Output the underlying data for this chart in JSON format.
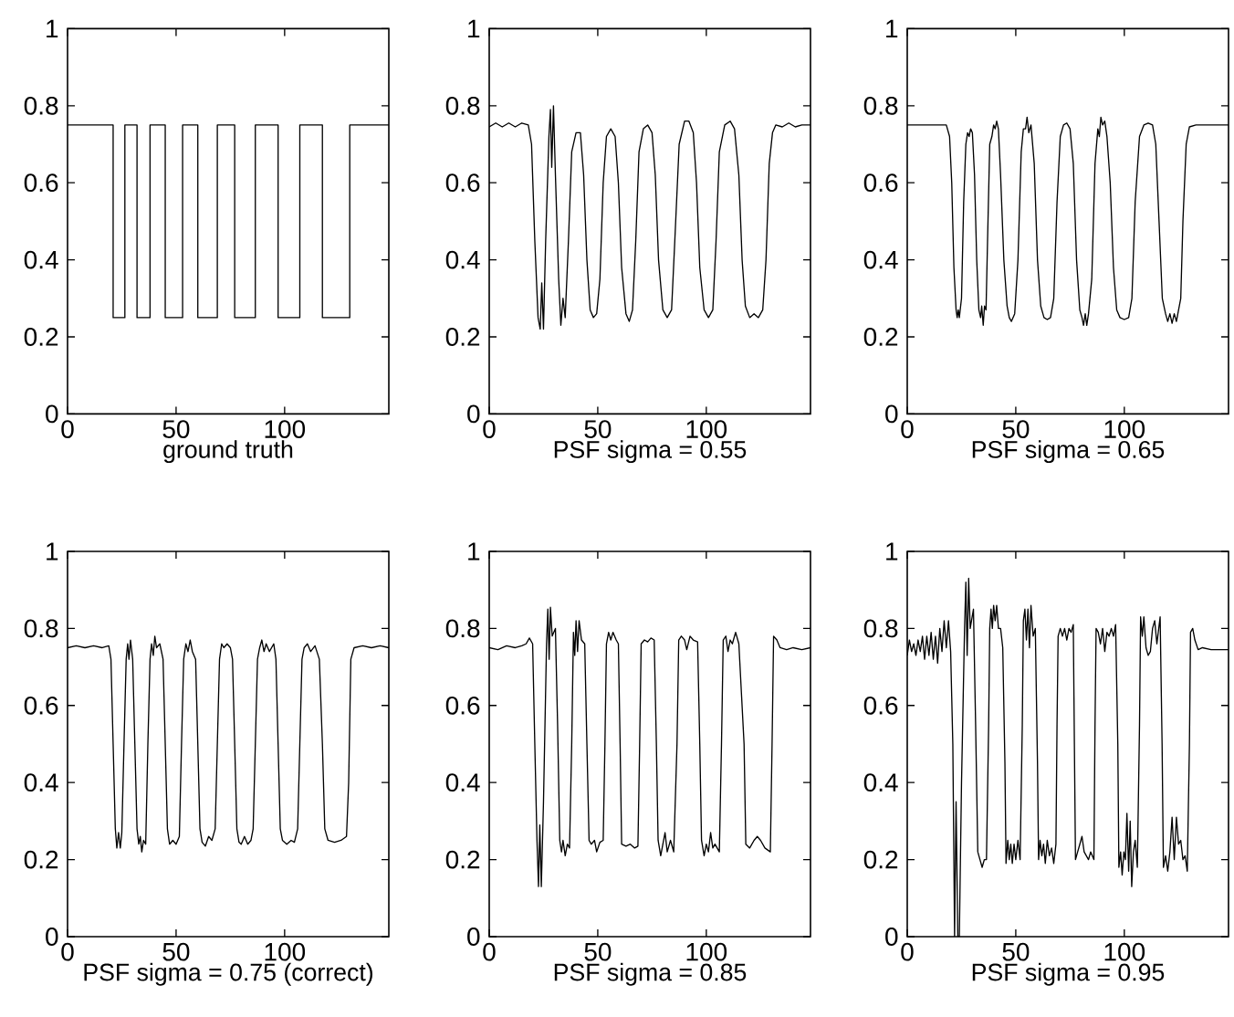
{
  "chart_data": [
    {
      "type": "line",
      "xlabel": "ground truth",
      "color": "#000000",
      "xlim": [
        0,
        148
      ],
      "ylim": [
        0,
        1
      ],
      "xticks": [
        0,
        50,
        100
      ],
      "yticks": [
        0,
        0.2,
        0.4,
        0.6,
        0.8,
        1
      ],
      "x": [
        0,
        21,
        21,
        26.4,
        26.4,
        32,
        32,
        38,
        38,
        45,
        45,
        53,
        53,
        60,
        60,
        69,
        69,
        77,
        77,
        86.5,
        86.5,
        97,
        97,
        107,
        107,
        117.4,
        117.4,
        130,
        130,
        148
      ],
      "values": [
        0.75,
        0.75,
        0.25,
        0.25,
        0.75,
        0.75,
        0.25,
        0.25,
        0.75,
        0.75,
        0.25,
        0.25,
        0.75,
        0.75,
        0.25,
        0.25,
        0.75,
        0.75,
        0.25,
        0.25,
        0.75,
        0.75,
        0.25,
        0.25,
        0.75,
        0.75,
        0.25,
        0.25,
        0.75,
        0.75
      ]
    },
    {
      "type": "line",
      "xlabel": "PSF sigma = 0.55",
      "color": "#000000",
      "xlim": [
        0,
        148
      ],
      "ylim": [
        0,
        1
      ],
      "xticks": [
        0,
        50,
        100
      ],
      "yticks": [
        0,
        0.2,
        0.4,
        0.6,
        0.8,
        1
      ],
      "x": [
        0,
        3,
        6,
        9,
        12,
        15,
        18,
        19.5,
        21,
        22.5,
        23.5,
        24.2,
        25,
        26,
        27.5,
        28.2,
        28.8,
        29.6,
        30.5,
        32,
        33,
        34,
        35,
        36.5,
        38,
        40,
        42,
        43.5,
        45,
        46.5,
        48,
        49.5,
        51,
        52.5,
        54,
        56,
        58,
        59.5,
        61,
        63,
        64.5,
        66,
        67.5,
        69,
        71,
        73,
        75,
        76.5,
        78,
        80,
        82,
        84,
        85.5,
        87.5,
        90,
        92,
        94,
        95.5,
        97,
        99,
        101,
        103,
        104.5,
        106,
        108.5,
        111,
        113,
        115,
        116.5,
        118,
        120,
        122,
        124,
        126,
        127.5,
        129,
        130.5,
        132,
        135,
        138,
        141,
        144,
        148
      ],
      "values": [
        0.745,
        0.755,
        0.745,
        0.755,
        0.745,
        0.755,
        0.75,
        0.7,
        0.45,
        0.25,
        0.22,
        0.34,
        0.22,
        0.45,
        0.72,
        0.79,
        0.64,
        0.8,
        0.62,
        0.35,
        0.23,
        0.3,
        0.25,
        0.45,
        0.68,
        0.73,
        0.73,
        0.62,
        0.4,
        0.27,
        0.25,
        0.26,
        0.35,
        0.6,
        0.72,
        0.74,
        0.72,
        0.6,
        0.38,
        0.26,
        0.24,
        0.27,
        0.45,
        0.68,
        0.74,
        0.75,
        0.73,
        0.62,
        0.4,
        0.27,
        0.25,
        0.27,
        0.45,
        0.7,
        0.76,
        0.76,
        0.73,
        0.6,
        0.38,
        0.27,
        0.25,
        0.27,
        0.45,
        0.68,
        0.75,
        0.76,
        0.74,
        0.62,
        0.4,
        0.28,
        0.25,
        0.26,
        0.25,
        0.27,
        0.4,
        0.65,
        0.73,
        0.75,
        0.745,
        0.755,
        0.745,
        0.75,
        0.75
      ]
    },
    {
      "type": "line",
      "xlabel": "PSF sigma = 0.65",
      "color": "#000000",
      "xlim": [
        0,
        148
      ],
      "ylim": [
        0,
        1
      ],
      "xticks": [
        0,
        50,
        100
      ],
      "yticks": [
        0,
        0.2,
        0.4,
        0.6,
        0.8,
        1
      ],
      "x": [
        0,
        5,
        10,
        15,
        18,
        19.5,
        20.5,
        21.5,
        22.5,
        23,
        23.5,
        24,
        25,
        26,
        27,
        27.8,
        28.5,
        29.2,
        30,
        31,
        32,
        33,
        33.8,
        34.3,
        35,
        35.6,
        36.3,
        37,
        38,
        39,
        39.8,
        40.5,
        41.2,
        42,
        43,
        44.5,
        46,
        47,
        48,
        49.5,
        51,
        52.5,
        53.5,
        54.5,
        55.2,
        56,
        57,
        58.5,
        60,
        61.5,
        63,
        64.5,
        66,
        67.5,
        69,
        70.5,
        72,
        73.5,
        75,
        76.5,
        78,
        79.5,
        80.5,
        81.2,
        82,
        82.7,
        83.5,
        85,
        86.5,
        87.8,
        88.5,
        89.2,
        90,
        91,
        92,
        93.5,
        95,
        96.5,
        98,
        100,
        102,
        103.5,
        105,
        107,
        109,
        111,
        113,
        114.5,
        116,
        117.5,
        119,
        120,
        121,
        122,
        123,
        124,
        125,
        126,
        127,
        128.5,
        130,
        133,
        148
      ],
      "values": [
        0.75,
        0.75,
        0.75,
        0.75,
        0.75,
        0.72,
        0.6,
        0.38,
        0.27,
        0.25,
        0.27,
        0.25,
        0.3,
        0.55,
        0.7,
        0.73,
        0.72,
        0.74,
        0.73,
        0.62,
        0.4,
        0.27,
        0.25,
        0.28,
        0.23,
        0.28,
        0.27,
        0.45,
        0.7,
        0.72,
        0.75,
        0.74,
        0.76,
        0.74,
        0.62,
        0.4,
        0.28,
        0.25,
        0.24,
        0.26,
        0.4,
        0.68,
        0.74,
        0.74,
        0.77,
        0.73,
        0.75,
        0.65,
        0.4,
        0.28,
        0.25,
        0.245,
        0.25,
        0.3,
        0.55,
        0.72,
        0.75,
        0.755,
        0.74,
        0.65,
        0.4,
        0.27,
        0.25,
        0.23,
        0.26,
        0.23,
        0.26,
        0.35,
        0.65,
        0.74,
        0.72,
        0.77,
        0.75,
        0.76,
        0.72,
        0.6,
        0.38,
        0.27,
        0.25,
        0.245,
        0.25,
        0.3,
        0.55,
        0.72,
        0.75,
        0.755,
        0.75,
        0.7,
        0.5,
        0.3,
        0.26,
        0.24,
        0.26,
        0.235,
        0.26,
        0.24,
        0.27,
        0.3,
        0.5,
        0.7,
        0.745,
        0.75,
        0.75
      ]
    },
    {
      "type": "line",
      "xlabel": "PSF sigma = 0.75 (correct)",
      "color": "#000000",
      "xlim": [
        0,
        148
      ],
      "ylim": [
        0,
        1
      ],
      "xticks": [
        0,
        50,
        100
      ],
      "yticks": [
        0,
        0.2,
        0.4,
        0.6,
        0.8,
        1
      ],
      "x": [
        0,
        4,
        8,
        12,
        16,
        19,
        20,
        21,
        22,
        22.7,
        23.5,
        24.3,
        25,
        26,
        27,
        27.7,
        28.3,
        29,
        30,
        31,
        32,
        32.8,
        33.5,
        34.2,
        35,
        36,
        37,
        38,
        38.7,
        39.5,
        40.2,
        41,
        42.5,
        44,
        45,
        46,
        47,
        48.5,
        50,
        51.5,
        52.5,
        53.5,
        54.5,
        55.5,
        56.5,
        57.5,
        59,
        60,
        61,
        62,
        63.5,
        65,
        66.5,
        68,
        69,
        70,
        71,
        72,
        73.5,
        75,
        76,
        77,
        78,
        79,
        80,
        81.5,
        83,
        84.5,
        85.5,
        86.5,
        87.5,
        88.5,
        89.5,
        90.5,
        91.5,
        93,
        95,
        96,
        97,
        98,
        99,
        101,
        103,
        104.5,
        106,
        107,
        108,
        109,
        110.5,
        112,
        114,
        116,
        117.4,
        118.5,
        120,
        123,
        126,
        128.5,
        129.5,
        130.5,
        132,
        136,
        140,
        144,
        148
      ],
      "values": [
        0.75,
        0.755,
        0.75,
        0.755,
        0.75,
        0.755,
        0.72,
        0.5,
        0.28,
        0.23,
        0.27,
        0.23,
        0.27,
        0.5,
        0.72,
        0.76,
        0.72,
        0.77,
        0.72,
        0.5,
        0.28,
        0.24,
        0.26,
        0.22,
        0.25,
        0.24,
        0.5,
        0.72,
        0.76,
        0.73,
        0.78,
        0.75,
        0.76,
        0.72,
        0.5,
        0.28,
        0.24,
        0.25,
        0.24,
        0.26,
        0.5,
        0.72,
        0.76,
        0.74,
        0.77,
        0.74,
        0.72,
        0.5,
        0.28,
        0.245,
        0.235,
        0.26,
        0.25,
        0.28,
        0.5,
        0.72,
        0.76,
        0.75,
        0.76,
        0.75,
        0.72,
        0.5,
        0.28,
        0.245,
        0.24,
        0.26,
        0.24,
        0.25,
        0.28,
        0.5,
        0.72,
        0.75,
        0.77,
        0.74,
        0.76,
        0.74,
        0.76,
        0.72,
        0.5,
        0.28,
        0.25,
        0.24,
        0.25,
        0.245,
        0.28,
        0.5,
        0.72,
        0.75,
        0.76,
        0.74,
        0.755,
        0.72,
        0.5,
        0.28,
        0.25,
        0.245,
        0.25,
        0.26,
        0.4,
        0.72,
        0.75,
        0.755,
        0.75,
        0.755,
        0.75
      ]
    },
    {
      "type": "line",
      "xlabel": "PSF sigma = 0.85",
      "color": "#000000",
      "xlim": [
        0,
        148
      ],
      "ylim": [
        0,
        1
      ],
      "xticks": [
        0,
        50,
        100
      ],
      "yticks": [
        0,
        0.2,
        0.4,
        0.6,
        0.8,
        1
      ],
      "x": [
        0,
        4,
        8,
        12,
        15,
        17,
        18.5,
        20,
        21,
        22,
        22.7,
        23.3,
        24,
        25,
        26.4,
        27,
        27.6,
        28.2,
        29,
        30.5,
        31.5,
        32.5,
        33.3,
        34,
        35,
        36,
        37,
        38,
        38.8,
        39.4,
        40,
        40.7,
        41.4,
        42.5,
        44,
        45,
        46,
        47,
        48.5,
        49.5,
        51,
        52.5,
        53.3,
        54,
        55,
        56,
        57,
        58.5,
        59.5,
        60.3,
        61,
        63,
        65,
        67,
        68.5,
        69.3,
        70,
        71.5,
        73,
        74.5,
        76,
        77,
        77.8,
        79,
        80,
        81,
        82,
        83.5,
        85,
        86.5,
        87.3,
        88.5,
        90,
        91,
        92.5,
        94,
        96,
        97,
        97.8,
        99,
        100,
        101,
        102,
        103,
        104,
        106,
        107,
        107.8,
        109,
        110,
        111,
        112,
        113.5,
        115,
        117.4,
        118.2,
        120,
        122,
        123.5,
        125,
        127,
        129.5,
        130.3,
        131,
        132.5,
        134,
        137,
        140,
        144,
        148
      ],
      "values": [
        0.75,
        0.745,
        0.755,
        0.75,
        0.755,
        0.76,
        0.775,
        0.76,
        0.5,
        0.25,
        0.13,
        0.29,
        0.13,
        0.35,
        0.76,
        0.85,
        0.72,
        0.855,
        0.78,
        0.8,
        0.55,
        0.25,
        0.22,
        0.25,
        0.21,
        0.24,
        0.23,
        0.5,
        0.79,
        0.73,
        0.82,
        0.74,
        0.82,
        0.77,
        0.76,
        0.5,
        0.25,
        0.24,
        0.25,
        0.22,
        0.245,
        0.25,
        0.5,
        0.76,
        0.79,
        0.77,
        0.79,
        0.77,
        0.76,
        0.5,
        0.24,
        0.235,
        0.24,
        0.23,
        0.235,
        0.5,
        0.76,
        0.77,
        0.765,
        0.775,
        0.77,
        0.5,
        0.25,
        0.21,
        0.24,
        0.27,
        0.22,
        0.25,
        0.22,
        0.5,
        0.77,
        0.78,
        0.77,
        0.745,
        0.78,
        0.77,
        0.765,
        0.5,
        0.25,
        0.21,
        0.24,
        0.22,
        0.27,
        0.23,
        0.24,
        0.22,
        0.5,
        0.77,
        0.78,
        0.74,
        0.77,
        0.76,
        0.79,
        0.76,
        0.5,
        0.24,
        0.23,
        0.25,
        0.26,
        0.25,
        0.23,
        0.22,
        0.5,
        0.78,
        0.77,
        0.75,
        0.745,
        0.75,
        0.745,
        0.75
      ]
    },
    {
      "type": "line",
      "xlabel": "PSF sigma = 0.95",
      "color": "#000000",
      "xlim": [
        0,
        148
      ],
      "ylim": [
        0,
        1
      ],
      "xticks": [
        0,
        50,
        100
      ],
      "yticks": [
        0,
        0.2,
        0.4,
        0.6,
        0.8,
        1
      ],
      "x": [
        0,
        1,
        2,
        3,
        4,
        5,
        6,
        7,
        8,
        9,
        10,
        11,
        12,
        13,
        14,
        15,
        16,
        17,
        18,
        19,
        20,
        21,
        21.8,
        22.5,
        23.3,
        24,
        25,
        26.4,
        27,
        27.6,
        28.3,
        29,
        30.5,
        31.5,
        32.5,
        33.5,
        34.5,
        35.5,
        36.5,
        37.5,
        38,
        38.6,
        39.2,
        39.8,
        40.5,
        41.2,
        42,
        43,
        44,
        45,
        45.5,
        46.3,
        47,
        47.7,
        48.4,
        49.2,
        50,
        51,
        52,
        53,
        53.5,
        54.2,
        54.9,
        55.6,
        56.3,
        57,
        58,
        59,
        60,
        60.5,
        61.2,
        62,
        62.8,
        63.6,
        64.5,
        65.5,
        66.5,
        67.5,
        68.5,
        69,
        69.5,
        70.5,
        71.5,
        72.5,
        73.5,
        74.5,
        75.5,
        76.5,
        77,
        77.5,
        78.5,
        79.5,
        80.5,
        81.5,
        82.5,
        83.5,
        84.5,
        86,
        86.5,
        87,
        88,
        89,
        90,
        91,
        92,
        93,
        94,
        95,
        96,
        97,
        97.5,
        98.3,
        99,
        99.8,
        100.5,
        101.2,
        102,
        102.7,
        103.4,
        104.2,
        105,
        106,
        107,
        107.5,
        108.3,
        109,
        110,
        111,
        112,
        113,
        114,
        115,
        116.5,
        117.4,
        118,
        119,
        120,
        121,
        122,
        123,
        124,
        125,
        126,
        127,
        128,
        129,
        130,
        130.5,
        131.5,
        132.5,
        134,
        136,
        140,
        148
      ],
      "values": [
        0.73,
        0.77,
        0.74,
        0.76,
        0.73,
        0.77,
        0.74,
        0.78,
        0.72,
        0.78,
        0.73,
        0.79,
        0.72,
        0.78,
        0.71,
        0.8,
        0.74,
        0.82,
        0.75,
        0.82,
        0.74,
        0.5,
        0,
        0.35,
        0,
        0,
        0.4,
        0.8,
        0.92,
        0.73,
        0.93,
        0.8,
        0.85,
        0.55,
        0.22,
        0.2,
        0.18,
        0.2,
        0.2,
        0.55,
        0.8,
        0.85,
        0.8,
        0.86,
        0.82,
        0.86,
        0.8,
        0.8,
        0.75,
        0.45,
        0.19,
        0.25,
        0.2,
        0.24,
        0.19,
        0.24,
        0.2,
        0.25,
        0.2,
        0.55,
        0.82,
        0.85,
        0.77,
        0.85,
        0.75,
        0.86,
        0.78,
        0.8,
        0.45,
        0.2,
        0.25,
        0.21,
        0.24,
        0.19,
        0.25,
        0.21,
        0.23,
        0.19,
        0.24,
        0.55,
        0.78,
        0.8,
        0.78,
        0.8,
        0.77,
        0.8,
        0.79,
        0.81,
        0.5,
        0.2,
        0.22,
        0.24,
        0.26,
        0.22,
        0.21,
        0.2,
        0.22,
        0.2,
        0.55,
        0.8,
        0.79,
        0.76,
        0.8,
        0.74,
        0.79,
        0.78,
        0.8,
        0.78,
        0.81,
        0.5,
        0.18,
        0.22,
        0.16,
        0.22,
        0.2,
        0.32,
        0.17,
        0.3,
        0.13,
        0.22,
        0.25,
        0.18,
        0.55,
        0.83,
        0.78,
        0.83,
        0.75,
        0.73,
        0.74,
        0.8,
        0.82,
        0.76,
        0.83,
        0.5,
        0.18,
        0.21,
        0.17,
        0.22,
        0.31,
        0.2,
        0.31,
        0.24,
        0.25,
        0.2,
        0.21,
        0.17,
        0.5,
        0.79,
        0.8,
        0.77,
        0.745,
        0.75,
        0.745,
        0.745
      ]
    }
  ]
}
